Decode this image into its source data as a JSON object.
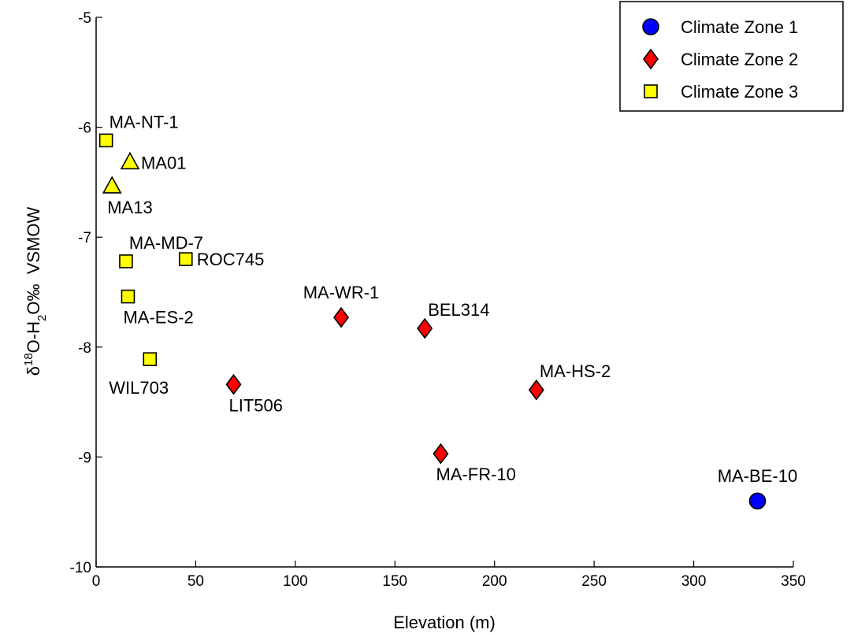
{
  "chart_data": {
    "type": "scatter",
    "title": "",
    "xlabel": "Elevation (m)",
    "ylabel": {
      "delta": "δ",
      "sup": "18",
      "mid": "O-H",
      "sub": "2",
      "rest": "O‰  VSMOW"
    },
    "xlim": [
      0,
      350
    ],
    "ylim": [
      -10,
      -5
    ],
    "x_ticks": [
      0,
      50,
      100,
      150,
      200,
      250,
      300,
      350
    ],
    "y_ticks": [
      -10,
      -9,
      -8,
      -7,
      -6,
      -5
    ],
    "legend": {
      "position": "top-right",
      "entries": [
        {
          "label": "Climate Zone 1",
          "marker": "circle",
          "color": "#0000ff"
        },
        {
          "label": "Climate Zone 2",
          "marker": "diamond",
          "color": "#ff0000"
        },
        {
          "label": "Climate Zone 3",
          "marker": "square",
          "color": "#ffff00"
        }
      ]
    },
    "points": [
      {
        "label": "MA-NT-1",
        "x": 5,
        "y": -6.12,
        "marker": "square",
        "color": "#ffff00",
        "label_pos": "above-right"
      },
      {
        "label": "MA01",
        "x": 17,
        "y": -6.32,
        "marker": "triangle",
        "color": "#ffff00",
        "label_pos": "right"
      },
      {
        "label": "MA13",
        "x": 8,
        "y": -6.54,
        "marker": "triangle",
        "color": "#ffff00",
        "label_pos": "below-right"
      },
      {
        "label": "MA-MD-7",
        "x": 15,
        "y": -7.22,
        "marker": "square",
        "color": "#ffff00",
        "label_pos": "above-right"
      },
      {
        "label": "ROC745",
        "x": 45,
        "y": -7.2,
        "marker": "square",
        "color": "#ffff00",
        "label_pos": "right"
      },
      {
        "label": "MA-ES-2",
        "x": 16,
        "y": -7.54,
        "marker": "square",
        "color": "#ffff00",
        "label_pos": "below-right"
      },
      {
        "label": "WIL703",
        "x": 27,
        "y": -8.11,
        "marker": "square",
        "color": "#ffff00",
        "label_pos": "below-left"
      },
      {
        "label": "LIT506",
        "x": 69,
        "y": -8.34,
        "marker": "diamond",
        "color": "#ff0000",
        "label_pos": "below-right"
      },
      {
        "label": "MA-WR-1",
        "x": 123,
        "y": -7.73,
        "marker": "diamond",
        "color": "#ff0000",
        "label_pos": "above"
      },
      {
        "label": "BEL314",
        "x": 165,
        "y": -7.83,
        "marker": "diamond",
        "color": "#ff0000",
        "label_pos": "above-right"
      },
      {
        "label": "MA-HS-2",
        "x": 221,
        "y": -8.39,
        "marker": "diamond",
        "color": "#ff0000",
        "label_pos": "above-right"
      },
      {
        "label": "MA-FR-10",
        "x": 173,
        "y": -8.97,
        "marker": "diamond",
        "color": "#ff0000",
        "label_pos": "below-right"
      },
      {
        "label": "MA-BE-10",
        "x": 332,
        "y": -9.4,
        "marker": "circle",
        "color": "#0000ff",
        "label_pos": "above"
      }
    ]
  }
}
